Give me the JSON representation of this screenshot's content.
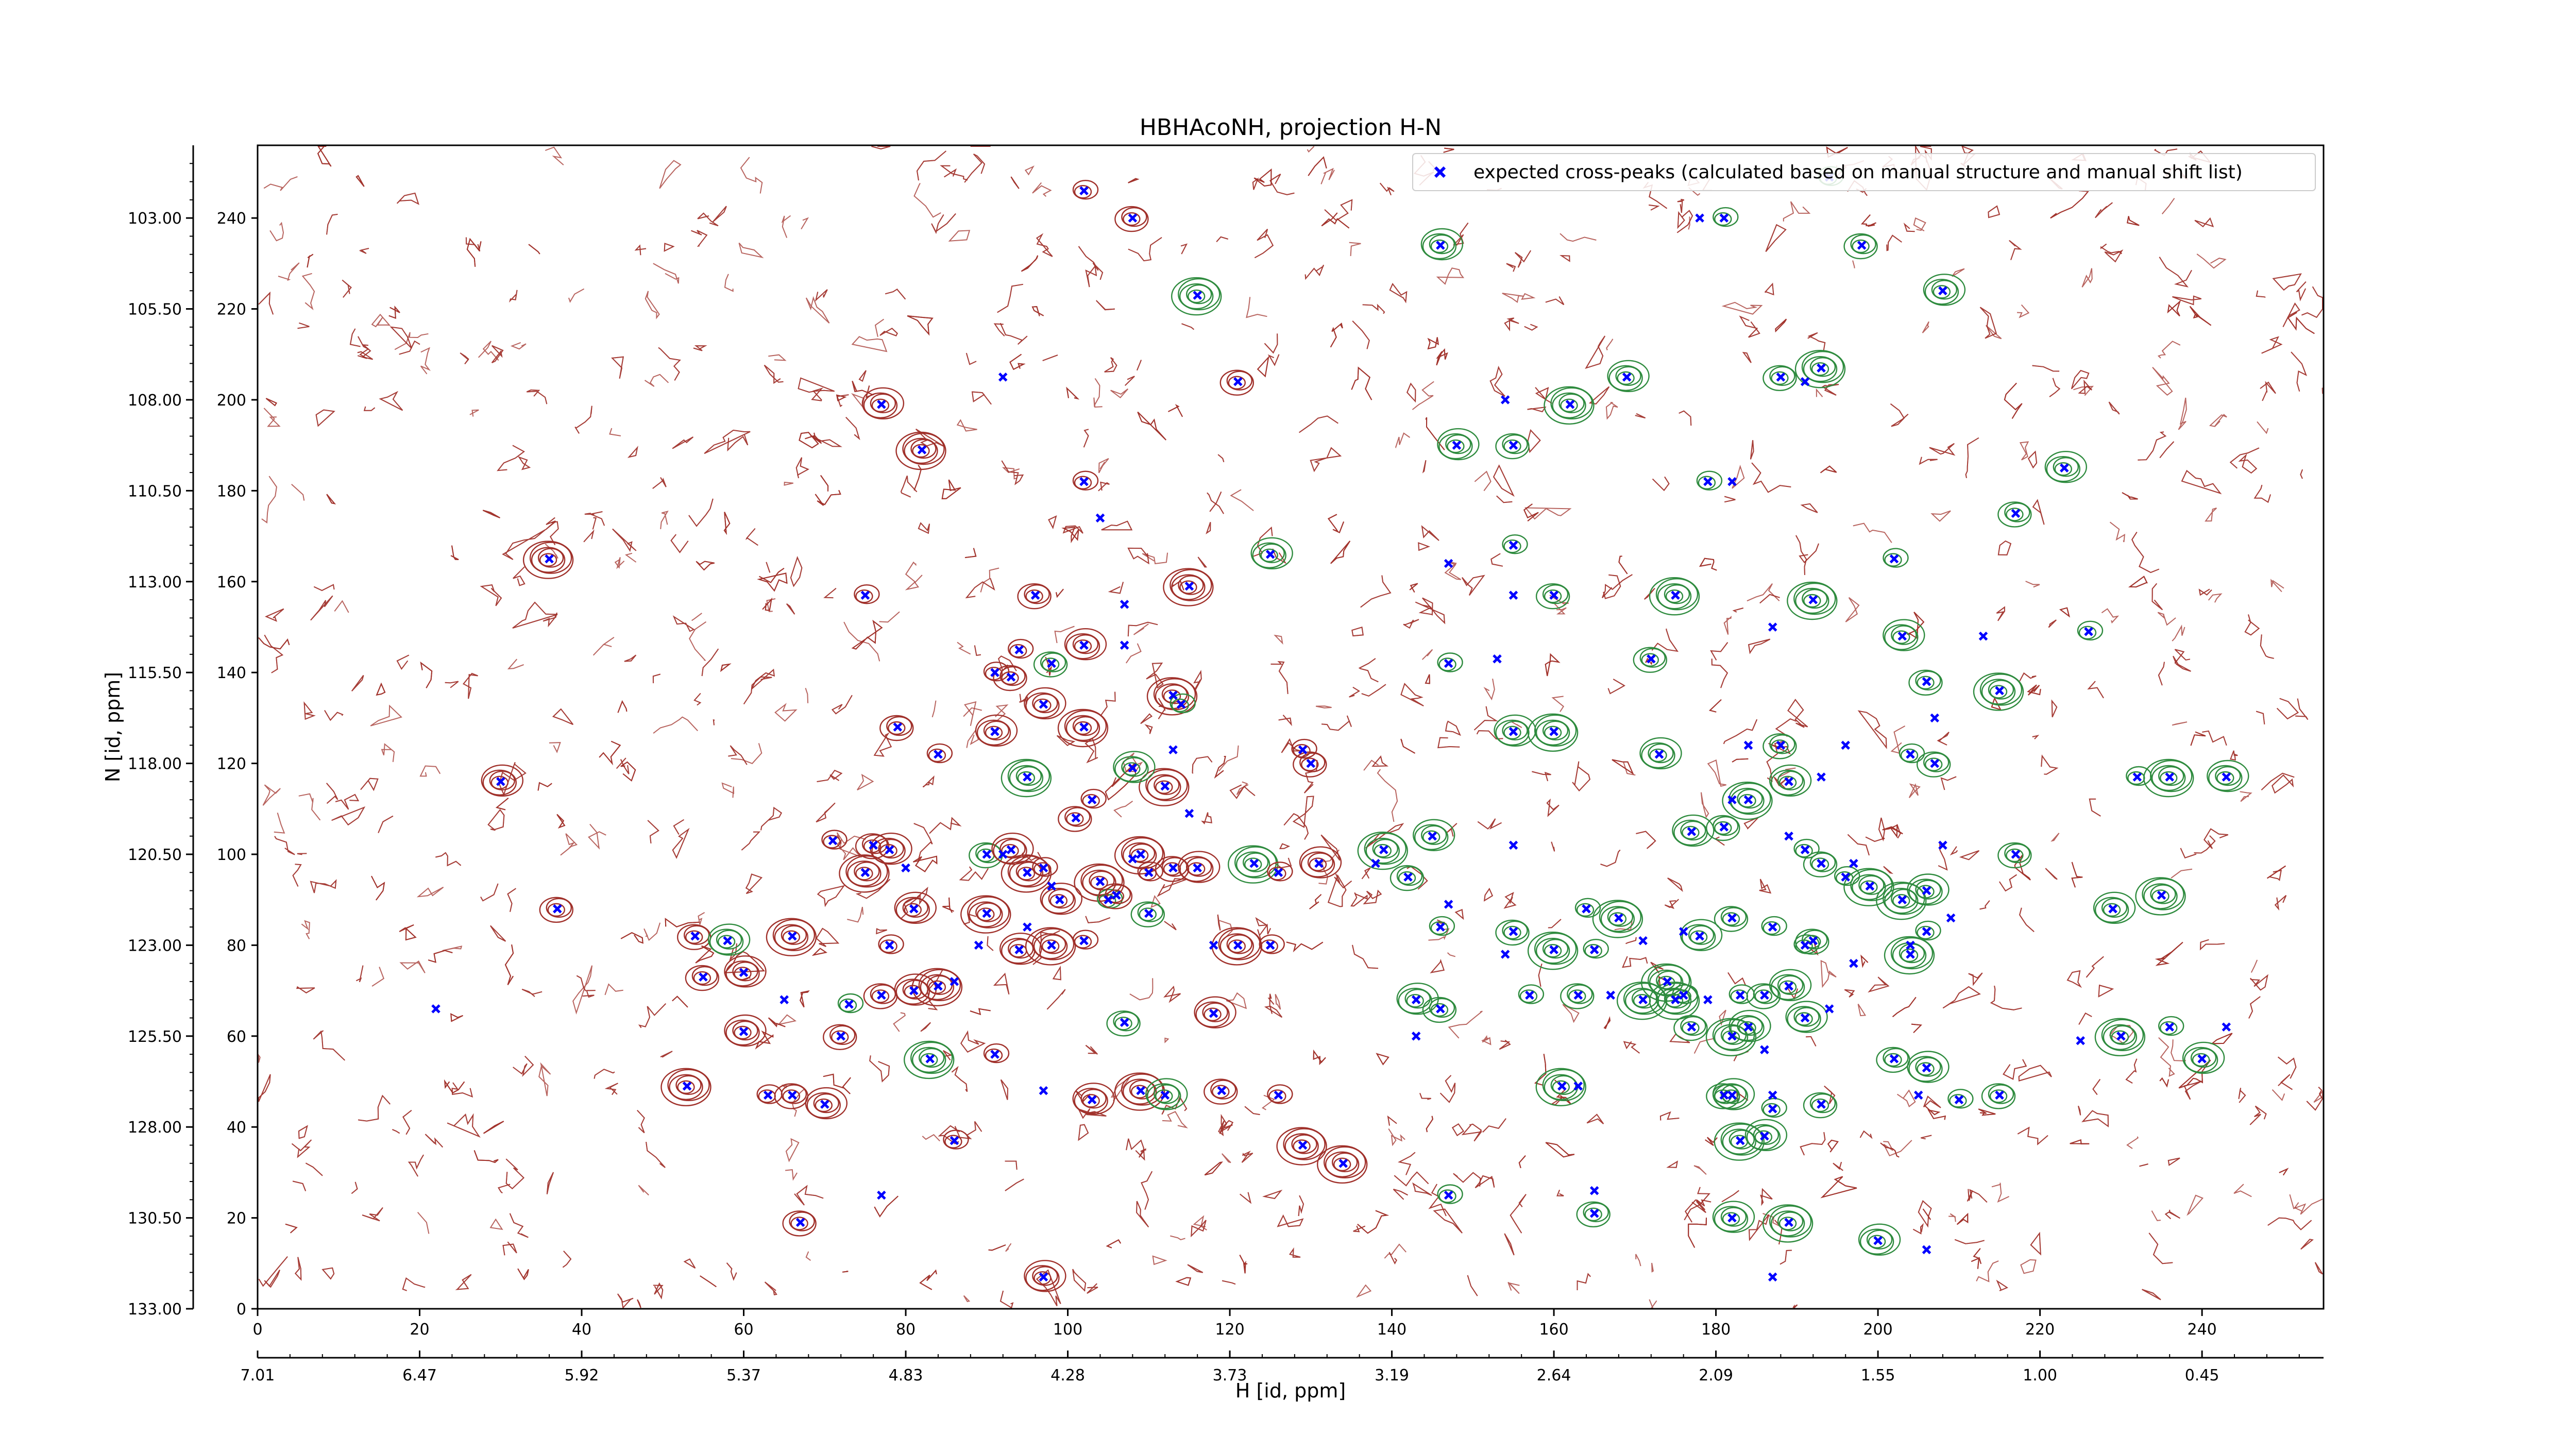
{
  "chart_data": {
    "type": "scatter",
    "title": "HBHAcoNH, projection H-N",
    "xlabel": "H [id, ppm]",
    "ylabel": "N [id, ppm]",
    "xlim": [
      0,
      255
    ],
    "ylim": [
      0,
      256
    ],
    "x_ticks_index": [
      "0",
      "20",
      "40",
      "60",
      "80",
      "100",
      "120",
      "140",
      "160",
      "180",
      "200",
      "220",
      "240"
    ],
    "x_ticks_ppm": [
      "7.01",
      "6.47",
      "5.92",
      "5.37",
      "4.83",
      "4.28",
      "3.73",
      "3.19",
      "2.64",
      "2.09",
      "1.55",
      "1.00",
      "0.45"
    ],
    "y_ticks_index": [
      "0",
      "20",
      "40",
      "60",
      "80",
      "100",
      "120",
      "140",
      "160",
      "180",
      "200",
      "220",
      "240"
    ],
    "y_ticks_ppm": [
      "133.00",
      "130.50",
      "128.00",
      "125.50",
      "123.00",
      "120.50",
      "118.00",
      "115.50",
      "113.00",
      "110.50",
      "108.00",
      "105.50",
      "103.00"
    ],
    "grid": false,
    "legend_position": "top-right",
    "colors": {
      "peaks": "#0000ff",
      "contour_positive": "#a0302a",
      "contour_negative": "#2e8b3e"
    },
    "series": [
      {
        "name": "expected cross-peaks (calculated based on manual structure and manual shift list)",
        "marker": "x",
        "points": [
          [
            102,
            246
          ],
          [
            108,
            240
          ],
          [
            146,
            234
          ],
          [
            116,
            223
          ],
          [
            92,
            205
          ],
          [
            121,
            204
          ],
          [
            77,
            199
          ],
          [
            82,
            189
          ],
          [
            102,
            182
          ],
          [
            104,
            174
          ],
          [
            125,
            166
          ],
          [
            36,
            165
          ],
          [
            75,
            157
          ],
          [
            96,
            157
          ],
          [
            107,
            155
          ],
          [
            115,
            159
          ],
          [
            94,
            145
          ],
          [
            98,
            142
          ],
          [
            102,
            146
          ],
          [
            107,
            146
          ],
          [
            91,
            140
          ],
          [
            93,
            139
          ],
          [
            97,
            133
          ],
          [
            113,
            135
          ],
          [
            114,
            133
          ],
          [
            79,
            128
          ],
          [
            91,
            127
          ],
          [
            102,
            128
          ],
          [
            84,
            122
          ],
          [
            113,
            123
          ],
          [
            30,
            116
          ],
          [
            95,
            117
          ],
          [
            103,
            112
          ],
          [
            101,
            108
          ],
          [
            115,
            109
          ],
          [
            112,
            115
          ],
          [
            129,
            123
          ],
          [
            130,
            120
          ],
          [
            108,
            119
          ],
          [
            92,
            100
          ],
          [
            71,
            103
          ],
          [
            76,
            102
          ],
          [
            78,
            101
          ],
          [
            75,
            96
          ],
          [
            80,
            97
          ],
          [
            90,
            100
          ],
          [
            93,
            101
          ],
          [
            95,
            96
          ],
          [
            97,
            97
          ],
          [
            98,
            93
          ],
          [
            99,
            90
          ],
          [
            104,
            94
          ],
          [
            105,
            90
          ],
          [
            106,
            91
          ],
          [
            108,
            99
          ],
          [
            109,
            100
          ],
          [
            110,
            96
          ],
          [
            113,
            97
          ],
          [
            116,
            97
          ],
          [
            123,
            98
          ],
          [
            126,
            96
          ],
          [
            37,
            88
          ],
          [
            81,
            88
          ],
          [
            90,
            87
          ],
          [
            95,
            84
          ],
          [
            54,
            82
          ],
          [
            58,
            81
          ],
          [
            66,
            82
          ],
          [
            78,
            80
          ],
          [
            89,
            80
          ],
          [
            94,
            79
          ],
          [
            98,
            80
          ],
          [
            102,
            81
          ],
          [
            110,
            87
          ],
          [
            118,
            80
          ],
          [
            121,
            80
          ],
          [
            125,
            80
          ],
          [
            55,
            73
          ],
          [
            60,
            74
          ],
          [
            65,
            68
          ],
          [
            73,
            67
          ],
          [
            77,
            69
          ],
          [
            81,
            70
          ],
          [
            84,
            71
          ],
          [
            86,
            72
          ],
          [
            72,
            60
          ],
          [
            60,
            61
          ],
          [
            83,
            55
          ],
          [
            91,
            56
          ],
          [
            97,
            48
          ],
          [
            103,
            46
          ],
          [
            109,
            48
          ],
          [
            126,
            47
          ],
          [
            119,
            48
          ],
          [
            112,
            47
          ],
          [
            53,
            49
          ],
          [
            63,
            47
          ],
          [
            66,
            47
          ],
          [
            70,
            45
          ],
          [
            22,
            66
          ],
          [
            86,
            37
          ],
          [
            107,
            63
          ],
          [
            118,
            65
          ],
          [
            129,
            36
          ],
          [
            77,
            25
          ],
          [
            67,
            19
          ],
          [
            97,
            7
          ],
          [
            134,
            32
          ],
          [
            194,
            249
          ],
          [
            198,
            234
          ],
          [
            208,
            224
          ],
          [
            178,
            240
          ],
          [
            181,
            240
          ],
          [
            188,
            205
          ],
          [
            191,
            204
          ],
          [
            193,
            207
          ],
          [
            179,
            182
          ],
          [
            182,
            182
          ],
          [
            169,
            205
          ],
          [
            162,
            199
          ],
          [
            154,
            200
          ],
          [
            155,
            190
          ],
          [
            148,
            190
          ],
          [
            147,
            164
          ],
          [
            155,
            168
          ],
          [
            160,
            157
          ],
          [
            155,
            157
          ],
          [
            175,
            157
          ],
          [
            202,
            165
          ],
          [
            217,
            175
          ],
          [
            223,
            185
          ],
          [
            192,
            156
          ],
          [
            187,
            150
          ],
          [
            172,
            143
          ],
          [
            203,
            148
          ],
          [
            213,
            148
          ],
          [
            226,
            149
          ],
          [
            206,
            138
          ],
          [
            207,
            130
          ],
          [
            215,
            136
          ],
          [
            147,
            142
          ],
          [
            153,
            143
          ],
          [
            155,
            127
          ],
          [
            160,
            127
          ],
          [
            184,
            124
          ],
          [
            188,
            124
          ],
          [
            173,
            122
          ],
          [
            196,
            124
          ],
          [
            204,
            122
          ],
          [
            207,
            120
          ],
          [
            243,
            117
          ],
          [
            236,
            117
          ],
          [
            232,
            117
          ],
          [
            193,
            117
          ],
          [
            189,
            116
          ],
          [
            184,
            112
          ],
          [
            182,
            112
          ],
          [
            181,
            106
          ],
          [
            177,
            105
          ],
          [
            189,
            104
          ],
          [
            191,
            101
          ],
          [
            193,
            98
          ],
          [
            197,
            98
          ],
          [
            199,
            93
          ],
          [
            196,
            95
          ],
          [
            208,
            102
          ],
          [
            206,
            92
          ],
          [
            203,
            90
          ],
          [
            209,
            86
          ],
          [
            217,
            100
          ],
          [
            229,
            88
          ],
          [
            235,
            91
          ],
          [
            187,
            84
          ],
          [
            182,
            86
          ],
          [
            176,
            83
          ],
          [
            168,
            86
          ],
          [
            164,
            88
          ],
          [
            155,
            102
          ],
          [
            145,
            104
          ],
          [
            139,
            101
          ],
          [
            138,
            98
          ],
          [
            142,
            95
          ],
          [
            131,
            98
          ],
          [
            147,
            89
          ],
          [
            146,
            84
          ],
          [
            155,
            83
          ],
          [
            154,
            78
          ],
          [
            160,
            79
          ],
          [
            165,
            79
          ],
          [
            171,
            81
          ],
          [
            178,
            82
          ],
          [
            174,
            72
          ],
          [
            183,
            69
          ],
          [
            186,
            69
          ],
          [
            189,
            71
          ],
          [
            197,
            76
          ],
          [
            191,
            80
          ],
          [
            192,
            81
          ],
          [
            204,
            80
          ],
          [
            204,
            78
          ],
          [
            206,
            83
          ],
          [
            194,
            66
          ],
          [
            191,
            64
          ],
          [
            175,
            68
          ],
          [
            179,
            68
          ],
          [
            146,
            66
          ],
          [
            143,
            68
          ],
          [
            143,
            60
          ],
          [
            157,
            69
          ],
          [
            163,
            69
          ],
          [
            167,
            69
          ],
          [
            171,
            68
          ],
          [
            176,
            69
          ],
          [
            177,
            62
          ],
          [
            184,
            62
          ],
          [
            182,
            60
          ],
          [
            186,
            57
          ],
          [
            202,
            55
          ],
          [
            206,
            53
          ],
          [
            205,
            47
          ],
          [
            210,
            46
          ],
          [
            215,
            47
          ],
          [
            225,
            59
          ],
          [
            230,
            60
          ],
          [
            236,
            62
          ],
          [
            243,
            62
          ],
          [
            240,
            55
          ],
          [
            161,
            49
          ],
          [
            163,
            49
          ],
          [
            181,
            47
          ],
          [
            182,
            47
          ],
          [
            187,
            47
          ],
          [
            187,
            44
          ],
          [
            193,
            45
          ],
          [
            186,
            38
          ],
          [
            183,
            37
          ],
          [
            147,
            25
          ],
          [
            165,
            26
          ],
          [
            182,
            20
          ],
          [
            189,
            19
          ],
          [
            187,
            7
          ],
          [
            165,
            21
          ],
          [
            200,
            15
          ],
          [
            206,
            13
          ]
        ]
      }
    ]
  }
}
